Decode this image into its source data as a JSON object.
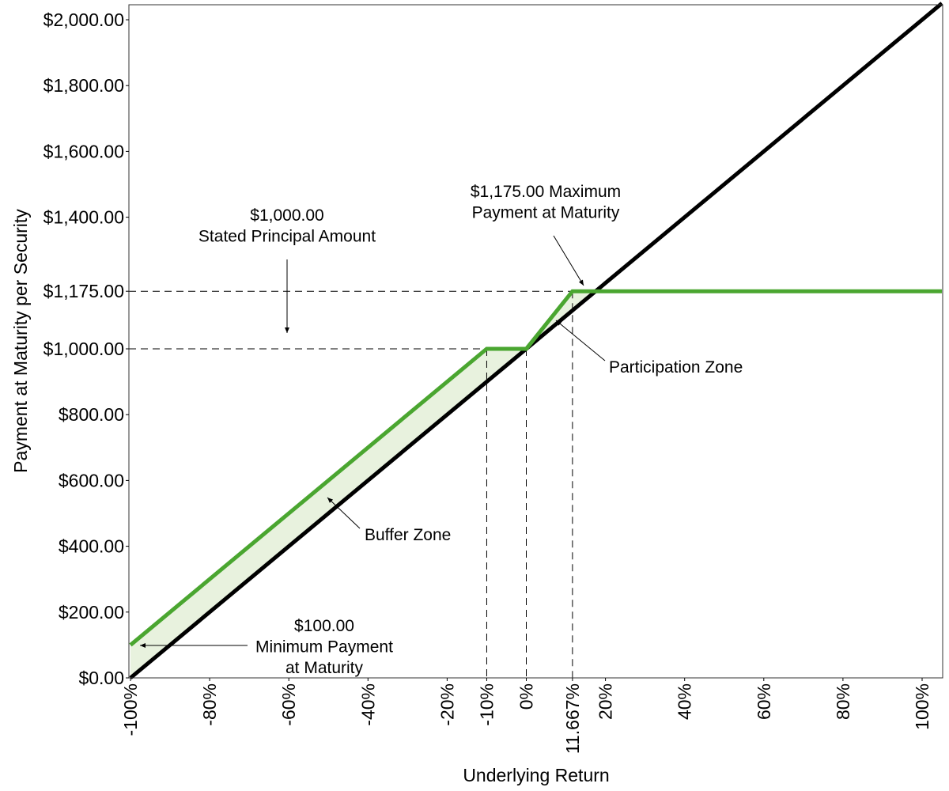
{
  "chart_data": {
    "type": "line",
    "title": "",
    "xlabel": "Underlying Return",
    "ylabel": "Payment at Maturity per Security",
    "xlim": [
      -100,
      105
    ],
    "ylim": [
      0,
      2045
    ],
    "grid": false,
    "x_ticks": [
      {
        "value": -100,
        "label": "-100%"
      },
      {
        "value": -80,
        "label": "-80%"
      },
      {
        "value": -60,
        "label": "-60%"
      },
      {
        "value": -40,
        "label": "-40%"
      },
      {
        "value": -20,
        "label": "-20%"
      },
      {
        "value": -10,
        "label": "-10%"
      },
      {
        "value": 0,
        "label": "0%"
      },
      {
        "value": 11.667,
        "label": "11.667%"
      },
      {
        "value": 20,
        "label": "20%"
      },
      {
        "value": 40,
        "label": "40%"
      },
      {
        "value": 60,
        "label": "60%"
      },
      {
        "value": 80,
        "label": "80%"
      },
      {
        "value": 100,
        "label": "100%"
      }
    ],
    "y_ticks": [
      {
        "value": 0,
        "label": "$0.00"
      },
      {
        "value": 200,
        "label": "$200.00"
      },
      {
        "value": 400,
        "label": "$400.00"
      },
      {
        "value": 600,
        "label": "$600.00"
      },
      {
        "value": 800,
        "label": "$800.00"
      },
      {
        "value": 1000,
        "label": "$1,000.00"
      },
      {
        "value": 1175,
        "label": "$1,175.00"
      },
      {
        "value": 1400,
        "label": "$1,400.00"
      },
      {
        "value": 1600,
        "label": "$1,600.00"
      },
      {
        "value": 1800,
        "label": "$1,800.00"
      },
      {
        "value": 2000,
        "label": "$2,000.00"
      }
    ],
    "series": [
      {
        "name": "Security payment",
        "color": "#4aa630",
        "x": [
          -100,
          -10,
          0,
          11.667,
          105
        ],
        "y": [
          100,
          1000,
          1000,
          1175,
          1175
        ]
      },
      {
        "name": "Underlying",
        "color": "#000000",
        "x": [
          -100,
          105
        ],
        "y": [
          0,
          2050
        ]
      }
    ],
    "shading_color": "#e8f2de",
    "reference_lines": [
      {
        "orientation": "horizontal",
        "value": 1175,
        "to_x": 11.667
      },
      {
        "orientation": "horizontal",
        "value": 1000,
        "to_x": -10
      },
      {
        "orientation": "vertical",
        "value": -10,
        "to_y": 1000
      },
      {
        "orientation": "vertical",
        "value": 0,
        "to_y": 1000
      },
      {
        "orientation": "vertical",
        "value": 11.667,
        "to_y": 1175
      }
    ],
    "annotations": [
      {
        "id": "principal",
        "lines": [
          "$1,000.00",
          "Stated Principal Amount"
        ]
      },
      {
        "id": "maximum",
        "lines": [
          "$1,175.00 Maximum",
          "Payment at Maturity"
        ]
      },
      {
        "id": "participation",
        "lines": [
          "Participation Zone"
        ]
      },
      {
        "id": "buffer",
        "lines": [
          "Buffer Zone"
        ]
      },
      {
        "id": "minimum",
        "lines": [
          "$100.00",
          "Minimum Payment",
          "at Maturity"
        ]
      }
    ]
  }
}
